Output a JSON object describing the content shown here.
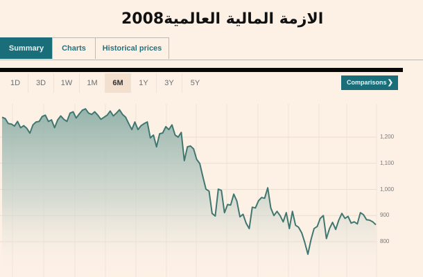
{
  "title": "الازمة المالية العالمية2008",
  "tabs": [
    {
      "label": "Summary",
      "active": true
    },
    {
      "label": "Charts",
      "active": false
    },
    {
      "label": "Historical prices",
      "active": false
    }
  ],
  "ranges": [
    {
      "label": "1D",
      "active": false
    },
    {
      "label": "3D",
      "active": false
    },
    {
      "label": "1W",
      "active": false
    },
    {
      "label": "1M",
      "active": false
    },
    {
      "label": "6M",
      "active": true
    },
    {
      "label": "1Y",
      "active": false
    },
    {
      "label": "3Y",
      "active": false
    },
    {
      "label": "5Y",
      "active": false
    }
  ],
  "comparisons": {
    "label": "Comparisons",
    "icon": "chevron-right-icon"
  },
  "colors": {
    "accent": "#1a6e7a",
    "line": "#3f7770",
    "background": "#fdf1e6"
  },
  "chart_data": {
    "type": "area",
    "title": "",
    "xlabel": "",
    "ylabel": "",
    "range": "6M",
    "y_ticks": [
      "1,200",
      "1,100",
      "1,000",
      "900",
      "800"
    ],
    "ylim": [
      740,
      1280
    ],
    "grid": true,
    "values": [
      1276,
      1271,
      1252,
      1250,
      1242,
      1260,
      1236,
      1244,
      1234,
      1215,
      1247,
      1258,
      1260,
      1279,
      1284,
      1260,
      1266,
      1236,
      1266,
      1281,
      1268,
      1260,
      1292,
      1297,
      1273,
      1289,
      1303,
      1308,
      1292,
      1287,
      1297,
      1284,
      1268,
      1276,
      1284,
      1300,
      1281,
      1292,
      1305,
      1287,
      1276,
      1252,
      1229,
      1258,
      1229,
      1244,
      1252,
      1258,
      1197,
      1208,
      1163,
      1213,
      1216,
      1240,
      1229,
      1247,
      1208,
      1200,
      1218,
      1110,
      1163,
      1166,
      1155,
      1115,
      1099,
      1049,
      1001,
      993,
      908,
      898,
      1001,
      996,
      911,
      942,
      940,
      982,
      956,
      895,
      905,
      871,
      850,
      932,
      929,
      956,
      969,
      966,
      1006,
      929,
      900,
      916,
      900,
      876,
      911,
      850,
      916,
      863,
      855,
      834,
      797,
      752,
      808,
      850,
      858,
      889,
      900,
      812,
      850,
      874,
      847,
      882,
      908,
      889,
      897,
      871,
      876,
      868,
      911,
      903,
      884,
      882,
      876,
      865
    ]
  }
}
